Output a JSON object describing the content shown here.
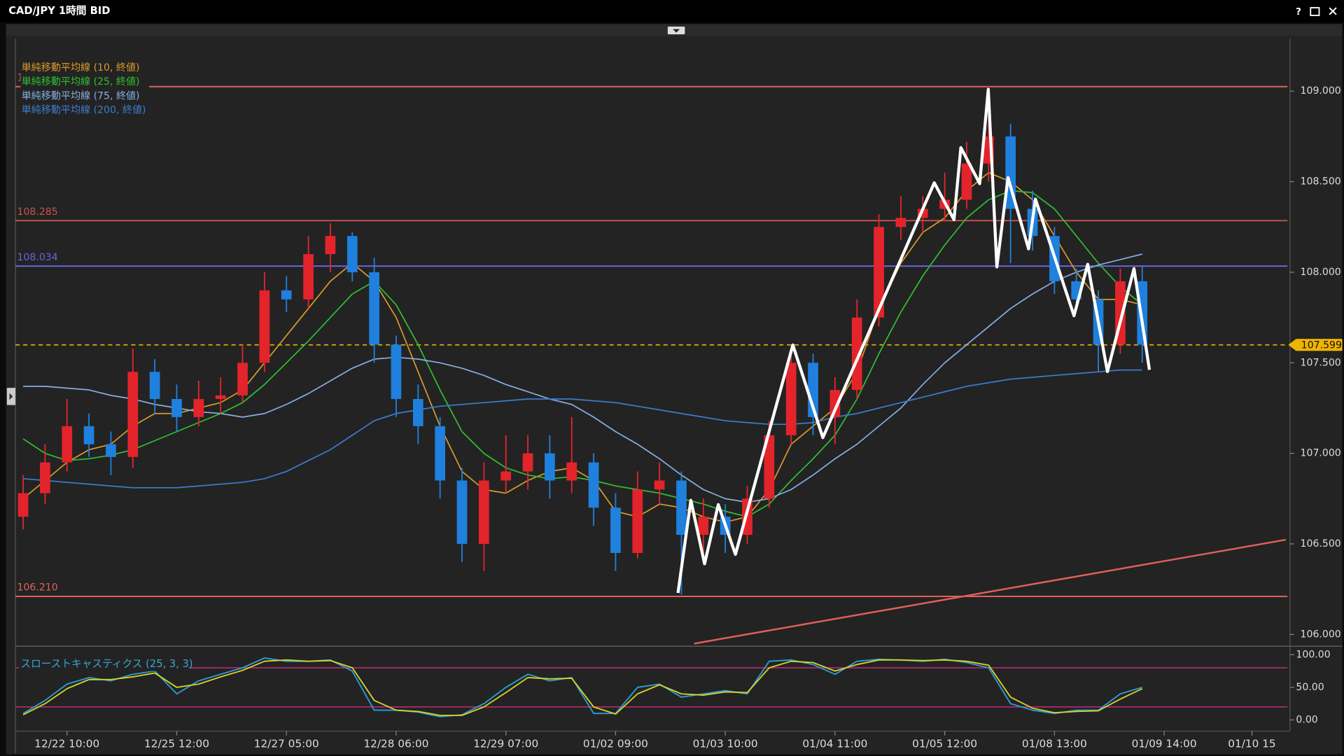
{
  "window": {
    "title": "CAD/JPY 1時間 BID",
    "help": "?"
  },
  "chart_data": [
    {
      "type": "candlestick",
      "categories": [
        null,
        null,
        "12/22 10:00",
        null,
        null,
        null,
        null,
        "12/25 12:00",
        null,
        null,
        null,
        null,
        "12/27 05:00",
        null,
        null,
        null,
        null,
        "12/28 06:00",
        null,
        null,
        null,
        null,
        "12/29 07:00",
        null,
        null,
        null,
        null,
        "01/02 09:00",
        null,
        null,
        null,
        null,
        "01/03 10:00",
        null,
        null,
        null,
        null,
        "01/04 11:00",
        null,
        null,
        null,
        null,
        "01/05 12:00",
        null,
        null,
        null,
        null,
        "01/08 13:00",
        null,
        null,
        null,
        null,
        "01/09 14:00",
        null,
        null,
        null,
        "01/10 15"
      ],
      "open": [
        106.65,
        106.78,
        106.95,
        107.15,
        107.05,
        106.98,
        107.45,
        107.3,
        107.2,
        107.3,
        107.32,
        107.5,
        107.9,
        107.85,
        108.1,
        108.2,
        108.0,
        107.6,
        107.3,
        107.15,
        106.85,
        106.5,
        106.85,
        106.9,
        107.0,
        106.85,
        106.95,
        106.7,
        106.45,
        106.8,
        106.85,
        106.55,
        106.65,
        106.55,
        106.75,
        107.1,
        107.5,
        107.2,
        107.35,
        107.75,
        108.25,
        108.3,
        108.35,
        108.4,
        108.6,
        108.75,
        108.35,
        108.2,
        107.95,
        107.85,
        107.6,
        107.95,
        null,
        null,
        null,
        null,
        null
      ],
      "high": [
        106.88,
        107.05,
        107.3,
        107.22,
        107.12,
        107.58,
        107.52,
        107.38,
        107.4,
        107.42,
        107.6,
        108.0,
        107.98,
        108.2,
        108.27,
        108.22,
        108.08,
        107.65,
        107.38,
        107.2,
        106.92,
        106.95,
        107.1,
        107.1,
        107.1,
        107.2,
        107.0,
        106.78,
        106.9,
        106.95,
        106.9,
        106.75,
        106.72,
        106.82,
        107.18,
        107.58,
        107.55,
        107.42,
        107.85,
        108.32,
        108.42,
        108.42,
        108.55,
        108.72,
        109.03,
        108.82,
        108.45,
        108.25,
        108.02,
        107.9,
        108.02,
        108.03,
        null,
        null,
        null,
        null,
        null
      ],
      "low": [
        106.58,
        106.72,
        106.9,
        106.98,
        106.88,
        106.92,
        107.22,
        107.12,
        107.15,
        107.22,
        107.28,
        107.45,
        107.78,
        107.8,
        108.0,
        107.95,
        107.5,
        107.2,
        107.05,
        106.75,
        106.4,
        106.35,
        106.78,
        106.8,
        106.75,
        106.78,
        106.6,
        106.35,
        106.42,
        106.72,
        106.22,
        106.4,
        106.45,
        106.5,
        106.7,
        107.05,
        107.1,
        107.05,
        107.3,
        107.7,
        108.18,
        108.22,
        108.28,
        108.35,
        108.5,
        108.05,
        108.12,
        107.88,
        107.8,
        107.45,
        107.55,
        107.5,
        null,
        null,
        null,
        null,
        null
      ],
      "close": [
        106.78,
        106.95,
        107.15,
        107.05,
        106.98,
        107.45,
        107.3,
        107.2,
        107.3,
        107.32,
        107.5,
        107.9,
        107.85,
        108.1,
        108.2,
        108.0,
        107.6,
        107.3,
        107.15,
        106.85,
        106.5,
        106.85,
        106.9,
        107.0,
        106.85,
        106.95,
        106.7,
        106.45,
        106.8,
        106.85,
        106.55,
        106.65,
        106.55,
        106.75,
        107.1,
        107.5,
        107.2,
        107.35,
        107.75,
        108.25,
        108.3,
        108.35,
        108.4,
        108.6,
        108.75,
        108.35,
        108.2,
        107.95,
        107.85,
        107.6,
        107.95,
        107.6,
        null,
        null,
        null,
        null,
        null
      ],
      "up_color": "#e3242b",
      "down_color": "#1f80dd",
      "ylim": [
        105.94,
        109.29
      ],
      "yticks": [
        {
          "value": 106,
          "label": "106.000"
        },
        {
          "value": 106.5,
          "label": "106.500"
        },
        {
          "value": 107,
          "label": "107.000"
        },
        {
          "value": 107.5,
          "label": "107.500"
        },
        {
          "value": 108,
          "label": "108.000"
        },
        {
          "value": 108.5,
          "label": "108.500"
        },
        {
          "value": 109,
          "label": "109.000"
        }
      ],
      "legend": "top-left",
      "series": [
        {
          "name": "単純移動平均線 (10, 終値)",
          "color": "#d99a2b",
          "values": [
            106.75,
            106.85,
            106.95,
            107.02,
            107.05,
            107.15,
            107.22,
            107.22,
            107.25,
            107.28,
            107.35,
            107.5,
            107.65,
            107.8,
            107.95,
            108.05,
            107.95,
            107.75,
            107.45,
            107.15,
            106.9,
            106.8,
            106.78,
            106.85,
            106.9,
            106.92,
            106.85,
            106.68,
            106.65,
            106.72,
            106.7,
            106.65,
            106.62,
            106.65,
            106.8,
            107.05,
            107.15,
            107.25,
            107.45,
            107.8,
            108.05,
            108.22,
            108.3,
            108.45,
            108.55,
            108.5,
            108.4,
            108.2,
            108.0,
            107.85,
            107.85,
            107.82,
            null,
            null,
            null,
            null,
            null
          ]
        },
        {
          "name": "単純移動平均線 (25, 終値)",
          "color": "#2fbf2f",
          "values": [
            107.08,
            107.0,
            106.96,
            106.97,
            106.99,
            107.02,
            107.07,
            107.12,
            107.17,
            107.22,
            107.28,
            107.38,
            107.5,
            107.62,
            107.75,
            107.88,
            107.95,
            107.82,
            107.6,
            107.35,
            107.12,
            107.0,
            106.92,
            106.88,
            106.86,
            106.87,
            106.85,
            106.82,
            106.8,
            106.78,
            106.75,
            106.72,
            106.68,
            106.65,
            106.72,
            106.85,
            106.97,
            107.1,
            107.3,
            107.55,
            107.78,
            107.98,
            108.15,
            108.3,
            108.4,
            108.45,
            108.44,
            108.35,
            108.2,
            108.05,
            107.92,
            107.82,
            null,
            null,
            null,
            null,
            null
          ]
        },
        {
          "name": "単純移動平均線 (75, 終値)",
          "color": "#86aee0",
          "values": [
            107.37,
            107.37,
            107.36,
            107.35,
            107.32,
            107.3,
            107.27,
            107.25,
            107.23,
            107.22,
            107.2,
            107.22,
            107.27,
            107.33,
            107.4,
            107.47,
            107.52,
            107.53,
            107.52,
            107.5,
            107.47,
            107.43,
            107.38,
            107.34,
            107.3,
            107.27,
            107.2,
            107.12,
            107.05,
            106.97,
            106.88,
            106.8,
            106.75,
            106.73,
            106.75,
            106.8,
            106.88,
            106.97,
            107.05,
            107.15,
            107.25,
            107.38,
            107.5,
            107.6,
            107.7,
            107.8,
            107.88,
            107.95,
            108.0,
            108.04,
            108.07,
            108.1,
            null,
            null,
            null,
            null,
            null
          ]
        },
        {
          "name": "単純移動平均線 (200, 終値)",
          "color": "#3c7ccc",
          "values": [
            106.86,
            106.85,
            106.84,
            106.83,
            106.82,
            106.81,
            106.81,
            106.81,
            106.82,
            106.83,
            106.84,
            106.86,
            106.9,
            106.96,
            107.02,
            107.1,
            107.18,
            107.22,
            107.24,
            107.26,
            107.27,
            107.28,
            107.29,
            107.3,
            107.3,
            107.3,
            107.29,
            107.28,
            107.26,
            107.24,
            107.22,
            107.2,
            107.18,
            107.17,
            107.16,
            107.16,
            107.17,
            107.2,
            107.22,
            107.25,
            107.28,
            107.31,
            107.34,
            107.37,
            107.39,
            107.41,
            107.42,
            107.43,
            107.44,
            107.45,
            107.46,
            107.46,
            null,
            null,
            null,
            null,
            null
          ]
        }
      ],
      "hlines": [
        {
          "value": 109.025,
          "color": "#e0605c"
        },
        {
          "value": 108.285,
          "color": "#c8524e"
        },
        {
          "value": 108.034,
          "color": "#6b63e0"
        },
        {
          "value": 106.21,
          "label": "106.210",
          "color": "#e0605c"
        }
      ],
      "last_price": {
        "value": 107.599,
        "color": "#f0b400"
      }
    },
    {
      "type": "line",
      "title": "スローストキャスティクス (25, 3, 3)",
      "ylim": [
        -14.5,
        107.9
      ],
      "yticks": [
        {
          "value": 0,
          "label": "0.00"
        },
        {
          "value": 50,
          "label": "50.00"
        },
        {
          "value": 100,
          "label": "100.00"
        }
      ],
      "levels": [
        80,
        20
      ],
      "level_color": "#c42a78",
      "series": [
        {
          "color": "#2a9fd8",
          "values": [
            10,
            30,
            55,
            65,
            60,
            70,
            75,
            40,
            60,
            70,
            80,
            95,
            90,
            90,
            92,
            75,
            15,
            15,
            12,
            5,
            8,
            25,
            50,
            70,
            60,
            65,
            10,
            10,
            50,
            55,
            35,
            40,
            45,
            40,
            90,
            92,
            85,
            70,
            90,
            93,
            92,
            90,
            93,
            88,
            80,
            25,
            15,
            10,
            15,
            15,
            40,
            50,
            null,
            null,
            null,
            null,
            null
          ]
        },
        {
          "color": "#d6d22a",
          "values": [
            8,
            25,
            48,
            62,
            62,
            66,
            72,
            50,
            55,
            66,
            76,
            90,
            92,
            90,
            91,
            80,
            30,
            15,
            13,
            7,
            7,
            20,
            42,
            65,
            63,
            64,
            20,
            9,
            40,
            54,
            40,
            38,
            43,
            42,
            80,
            90,
            88,
            75,
            85,
            92,
            92,
            91,
            92,
            90,
            84,
            35,
            18,
            11,
            13,
            14,
            32,
            48,
            null,
            null,
            null,
            null,
            null
          ]
        }
      ]
    }
  ]
}
